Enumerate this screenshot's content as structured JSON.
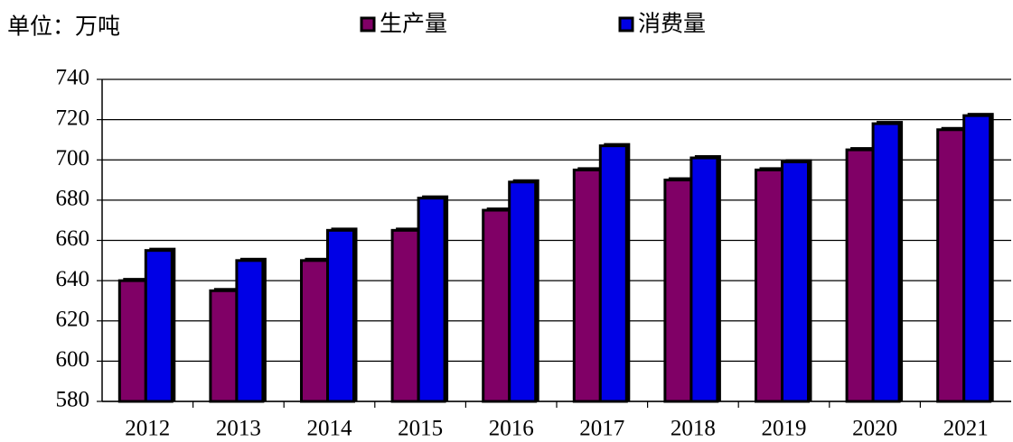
{
  "chart_data": {
    "type": "bar",
    "unit": "单位：万吨",
    "categories": [
      "2012",
      "2013",
      "2014",
      "2015",
      "2016",
      "2017",
      "2018",
      "2019",
      "2020",
      "2021"
    ],
    "series": [
      {
        "name": "生产量",
        "color": "#800066",
        "values": [
          640,
          635,
          650,
          665,
          675,
          695,
          690,
          695,
          705,
          715
        ]
      },
      {
        "name": "消费量",
        "color": "#0000e6",
        "values": [
          655,
          650,
          665,
          681,
          689,
          707,
          701,
          699,
          718,
          722
        ]
      }
    ],
    "ylim": [
      580,
      740
    ],
    "yticks": [
      580,
      600,
      620,
      640,
      660,
      680,
      700,
      720,
      740
    ],
    "grid": true
  }
}
